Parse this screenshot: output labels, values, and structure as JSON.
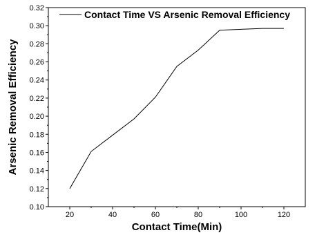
{
  "chart_data": {
    "type": "line",
    "title": "",
    "xlabel": "Contact Time(Min)",
    "ylabel": "Arsenic Removal Efficiency",
    "xlim": [
      10,
      130
    ],
    "ylim": [
      0.1,
      0.32
    ],
    "xticks": [
      20,
      40,
      60,
      80,
      100,
      120
    ],
    "yticks": [
      0.1,
      0.12,
      0.14,
      0.16,
      0.18,
      0.2,
      0.22,
      0.24,
      0.26,
      0.28,
      0.3,
      0.32
    ],
    "xtick_labels": [
      "20",
      "40",
      "60",
      "80",
      "100",
      "120"
    ],
    "ytick_labels": [
      "0.10",
      "0.12",
      "0.14",
      "0.16",
      "0.18",
      "0.20",
      "0.22",
      "0.24",
      "0.26",
      "0.28",
      "0.30",
      "0.32"
    ],
    "grid": false,
    "legend_position": "top-right",
    "series": [
      {
        "name": "Contact Time VS Arsenic Removal Efficiency",
        "color": "#000000",
        "x": [
          20,
          30,
          40,
          50,
          60,
          70,
          80,
          90,
          100,
          110,
          120
        ],
        "y": [
          0.12,
          0.161,
          0.179,
          0.197,
          0.221,
          0.255,
          0.273,
          0.295,
          0.296,
          0.297,
          0.297
        ]
      }
    ]
  }
}
